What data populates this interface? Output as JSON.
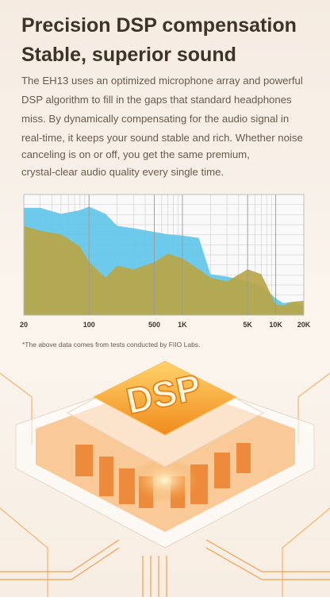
{
  "header": {
    "title_lines": [
      "Precision DSP compensation",
      "Stable, superior sound"
    ]
  },
  "body": {
    "lines": [
      "The EH13 uses an optimized microphone array and powerful",
      "DSP algorithm to fill in the gaps that standard headphones",
      "miss. By dynamically compensating for the audio signal in",
      "real-time, it keeps your sound stable and rich. Whether noise",
      "canceling is on or off, you get the same premium,",
      "crystal-clear audio quality every single time."
    ]
  },
  "chart_data": {
    "type": "area",
    "xscale": "log",
    "grid": true,
    "x": [
      20,
      30,
      50,
      80,
      100,
      150,
      200,
      300,
      500,
      700,
      1000,
      1500,
      2000,
      3000,
      5000,
      7000,
      10000,
      12000,
      15000,
      20000
    ],
    "series": [
      {
        "color": "#62c6e8",
        "values": [
          89,
          89,
          84,
          87,
          90,
          84,
          74,
          72,
          69,
          67,
          66,
          64,
          34,
          32,
          28,
          24,
          14,
          10,
          11,
          8
        ]
      },
      {
        "color": "#b9a648",
        "values": [
          74,
          70,
          67,
          57,
          44,
          31,
          41,
          38,
          44,
          51,
          47,
          38,
          31,
          28,
          38,
          34,
          9,
          8,
          11,
          12
        ]
      }
    ],
    "xlim": [
      20,
      20000
    ],
    "ylim": [
      0,
      100
    ],
    "xticks": [
      20,
      100,
      500,
      {
        "value": 1000,
        "label": "1K"
      },
      {
        "value": 5000,
        "label": "5K"
      },
      {
        "value": 10000,
        "label": "10K"
      },
      {
        "value": 20000,
        "label": "20K"
      }
    ]
  },
  "footnote": "*The above data comes from tests conducted by FIIO Labs.",
  "illustration": {
    "label": "DSP"
  }
}
